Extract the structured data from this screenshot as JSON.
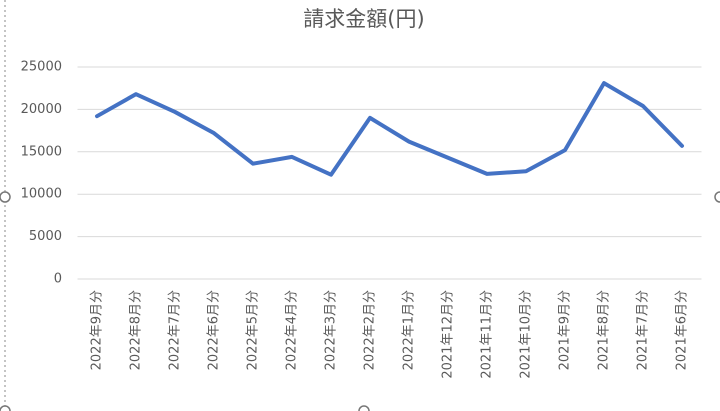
{
  "chart_data": {
    "type": "line",
    "title": "請求金額(円)",
    "categories": [
      "2022年9月分",
      "2022年8月分",
      "2022年7月分",
      "2022年6月分",
      "2022年5月分",
      "2022年4月分",
      "2022年3月分",
      "2022年2月分",
      "2022年1月分",
      "2021年12月分",
      "2021年11月分",
      "2021年10月分",
      "2021年9月分",
      "2021年8月分",
      "2021年7月分",
      "2021年6月分"
    ],
    "values": [
      19200,
      21800,
      19700,
      17200,
      13600,
      14400,
      12300,
      19000,
      16200,
      14300,
      12400,
      12700,
      15200,
      23100,
      20400,
      15700
    ],
    "color": "#4472c4",
    "ylim": [
      0,
      25000
    ],
    "yticks": [
      0,
      5000,
      10000,
      15000,
      20000,
      25000
    ],
    "grid": true
  }
}
